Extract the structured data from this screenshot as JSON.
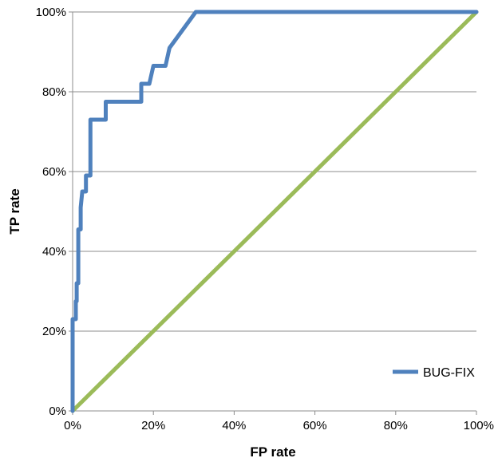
{
  "chart_data": {
    "type": "line",
    "title": "",
    "xlabel": "FP rate",
    "ylabel": "TP rate",
    "xlim": [
      0,
      100
    ],
    "ylim": [
      0,
      100
    ],
    "x_ticks": [
      "0%",
      "20%",
      "40%",
      "60%",
      "80%",
      "100%"
    ],
    "y_ticks": [
      "0%",
      "20%",
      "40%",
      "60%",
      "80%",
      "100%"
    ],
    "grid": "horizontal",
    "legend_position": "bottom-right",
    "series": [
      {
        "name": "BUG-FIX",
        "color": "#4f81bd",
        "points": [
          [
            0,
            0
          ],
          [
            0,
            23
          ],
          [
            0.8,
            23
          ],
          [
            0.8,
            27.5
          ],
          [
            1,
            27.5
          ],
          [
            1,
            32
          ],
          [
            1.4,
            32
          ],
          [
            1.4,
            45.5
          ],
          [
            2,
            45.5
          ],
          [
            2,
            51
          ],
          [
            2.4,
            55
          ],
          [
            3.3,
            55
          ],
          [
            3.3,
            59
          ],
          [
            4.4,
            59
          ],
          [
            4.4,
            73
          ],
          [
            8.2,
            73
          ],
          [
            8.2,
            77.5
          ],
          [
            17,
            77.5
          ],
          [
            17,
            82
          ],
          [
            19,
            82
          ],
          [
            20,
            86.5
          ],
          [
            23,
            86.5
          ],
          [
            24,
            91
          ],
          [
            30.5,
            100
          ],
          [
            100,
            100
          ]
        ]
      },
      {
        "name": "",
        "color": "#9bbb59",
        "points": [
          [
            0,
            0
          ],
          [
            100,
            100
          ]
        ]
      }
    ]
  }
}
